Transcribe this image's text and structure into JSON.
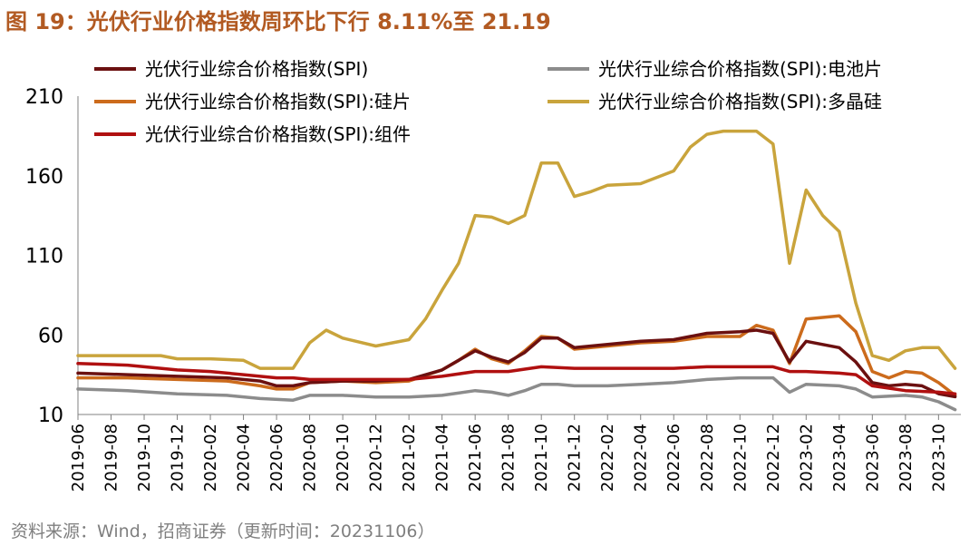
{
  "title": "图 19：光伏行业价格指数周环比下行 8.11%至 21.19",
  "source": "资料来源：Wind，招商证券（更新时间：20231106）",
  "chart_data": {
    "type": "line",
    "title": "图 19：光伏行业价格指数周环比下行 8.11%至 21.19",
    "xlabel": "",
    "ylabel": "",
    "ylim": [
      10,
      210
    ],
    "yticks": [
      10,
      60,
      110,
      160,
      210
    ],
    "xticks": [
      "2019-06",
      "2019-08",
      "2019-10",
      "2019-12",
      "2020-02",
      "2020-04",
      "2020-06",
      "2020-08",
      "2020-10",
      "2020-12",
      "2021-02",
      "2021-04",
      "2021-06",
      "2021-08",
      "2021-10",
      "2021-12",
      "2022-02",
      "2022-04",
      "2022-06",
      "2022-08",
      "2022-10",
      "2022-12",
      "2023-02",
      "2023-04",
      "2023-06",
      "2023-08",
      "2023-10"
    ],
    "grid": false,
    "legend": "top",
    "series": [
      {
        "name": "光伏行业综合价格指数(SPI)",
        "color": "#6b1010",
        "points": [
          [
            "2019-06",
            36
          ],
          [
            "2019-09",
            35
          ],
          [
            "2019-12",
            34
          ],
          [
            "2020-03",
            33
          ],
          [
            "2020-05",
            31
          ],
          [
            "2020-06",
            28
          ],
          [
            "2020-07",
            28
          ],
          [
            "2020-08",
            30
          ],
          [
            "2020-10",
            31
          ],
          [
            "2020-12",
            31
          ],
          [
            "2021-02",
            32
          ],
          [
            "2021-04",
            38
          ],
          [
            "2021-05",
            44
          ],
          [
            "2021-06",
            50
          ],
          [
            "2021-07",
            46
          ],
          [
            "2021-08",
            43
          ],
          [
            "2021-09",
            49
          ],
          [
            "2021-10",
            58
          ],
          [
            "2021-11",
            58
          ],
          [
            "2021-12",
            52
          ],
          [
            "2022-02",
            54
          ],
          [
            "2022-04",
            56
          ],
          [
            "2022-06",
            57
          ],
          [
            "2022-08",
            61
          ],
          [
            "2022-10",
            62
          ],
          [
            "2022-11",
            63
          ],
          [
            "2022-12",
            61
          ],
          [
            "2023-01",
            43
          ],
          [
            "2023-02",
            56
          ],
          [
            "2023-04",
            52
          ],
          [
            "2023-05",
            43
          ],
          [
            "2023-06",
            30
          ],
          [
            "2023-07",
            28
          ],
          [
            "2023-08",
            29
          ],
          [
            "2023-09",
            28
          ],
          [
            "2023-10",
            23.06
          ],
          [
            "2023-11",
            21.19
          ]
        ]
      },
      {
        "name": "光伏行业综合价格指数(SPI):电池片",
        "color": "#8c8c8c",
        "points": [
          [
            "2019-06",
            26
          ],
          [
            "2019-09",
            25
          ],
          [
            "2019-12",
            23
          ],
          [
            "2020-03",
            22
          ],
          [
            "2020-05",
            20
          ],
          [
            "2020-07",
            19
          ],
          [
            "2020-08",
            22
          ],
          [
            "2020-10",
            22
          ],
          [
            "2020-12",
            21
          ],
          [
            "2021-02",
            21
          ],
          [
            "2021-04",
            22
          ],
          [
            "2021-06",
            25
          ],
          [
            "2021-07",
            24
          ],
          [
            "2021-08",
            22
          ],
          [
            "2021-09",
            25
          ],
          [
            "2021-10",
            29
          ],
          [
            "2021-11",
            29
          ],
          [
            "2021-12",
            28
          ],
          [
            "2022-02",
            28
          ],
          [
            "2022-04",
            29
          ],
          [
            "2022-06",
            30
          ],
          [
            "2022-08",
            32
          ],
          [
            "2022-10",
            33
          ],
          [
            "2022-12",
            33
          ],
          [
            "2023-01",
            24
          ],
          [
            "2023-02",
            29
          ],
          [
            "2023-04",
            28
          ],
          [
            "2023-05",
            26
          ],
          [
            "2023-06",
            21
          ],
          [
            "2023-08",
            22
          ],
          [
            "2023-09",
            21
          ],
          [
            "2023-10",
            18
          ],
          [
            "2023-11",
            13
          ]
        ]
      },
      {
        "name": "光伏行业综合价格指数(SPI):硅片",
        "color": "#cc6b1c",
        "points": [
          [
            "2019-06",
            33
          ],
          [
            "2019-09",
            33
          ],
          [
            "2019-12",
            32
          ],
          [
            "2020-03",
            31
          ],
          [
            "2020-05",
            28
          ],
          [
            "2020-06",
            26
          ],
          [
            "2020-07",
            26
          ],
          [
            "2020-08",
            30
          ],
          [
            "2020-10",
            31
          ],
          [
            "2020-12",
            30
          ],
          [
            "2021-02",
            31
          ],
          [
            "2021-04",
            38
          ],
          [
            "2021-05",
            44
          ],
          [
            "2021-06",
            51
          ],
          [
            "2021-07",
            45
          ],
          [
            "2021-08",
            42
          ],
          [
            "2021-09",
            50
          ],
          [
            "2021-10",
            59
          ],
          [
            "2021-11",
            58
          ],
          [
            "2021-12",
            51
          ],
          [
            "2022-02",
            53
          ],
          [
            "2022-04",
            55
          ],
          [
            "2022-06",
            56
          ],
          [
            "2022-08",
            59
          ],
          [
            "2022-10",
            59
          ],
          [
            "2022-11",
            66
          ],
          [
            "2022-12",
            63
          ],
          [
            "2023-01",
            42
          ],
          [
            "2023-02",
            70
          ],
          [
            "2023-04",
            72
          ],
          [
            "2023-05",
            62
          ],
          [
            "2023-06",
            37
          ],
          [
            "2023-07",
            33
          ],
          [
            "2023-08",
            37
          ],
          [
            "2023-09",
            36
          ],
          [
            "2023-10",
            30
          ],
          [
            "2023-11",
            22
          ]
        ]
      },
      {
        "name": "光伏行业综合价格指数(SPI):多晶硅",
        "color": "#c9a43c",
        "points": [
          [
            "2019-06",
            47
          ],
          [
            "2019-09",
            47
          ],
          [
            "2019-11",
            47
          ],
          [
            "2019-12",
            45
          ],
          [
            "2020-02",
            45
          ],
          [
            "2020-04",
            44
          ],
          [
            "2020-05",
            39
          ],
          [
            "2020-07",
            39
          ],
          [
            "2020-08",
            55
          ],
          [
            "2020-09",
            63
          ],
          [
            "2020-10",
            58
          ],
          [
            "2020-12",
            53
          ],
          [
            "2021-02",
            57
          ],
          [
            "2021-03",
            70
          ],
          [
            "2021-04",
            88
          ],
          [
            "2021-05",
            105
          ],
          [
            "2021-06",
            135
          ],
          [
            "2021-07",
            134
          ],
          [
            "2021-08",
            130
          ],
          [
            "2021-09",
            135
          ],
          [
            "2021-10",
            168
          ],
          [
            "2021-11",
            168
          ],
          [
            "2021-12",
            147
          ],
          [
            "2022-01",
            150
          ],
          [
            "2022-02",
            154
          ],
          [
            "2022-04",
            155
          ],
          [
            "2022-06",
            163
          ],
          [
            "2022-07",
            178
          ],
          [
            "2022-08",
            186
          ],
          [
            "2022-09",
            188
          ],
          [
            "2022-10",
            188
          ],
          [
            "2022-11",
            188
          ],
          [
            "2022-12",
            180
          ],
          [
            "2023-01",
            105
          ],
          [
            "2023-02",
            151
          ],
          [
            "2023-03",
            135
          ],
          [
            "2023-04",
            125
          ],
          [
            "2023-05",
            80
          ],
          [
            "2023-06",
            47
          ],
          [
            "2023-07",
            44
          ],
          [
            "2023-08",
            50
          ],
          [
            "2023-09",
            52
          ],
          [
            "2023-10",
            52
          ],
          [
            "2023-11",
            39
          ]
        ]
      },
      {
        "name": "光伏行业综合价格指数(SPI):组件",
        "color": "#b01010",
        "points": [
          [
            "2019-06",
            42
          ],
          [
            "2019-09",
            41
          ],
          [
            "2019-12",
            38
          ],
          [
            "2020-02",
            37
          ],
          [
            "2020-04",
            35
          ],
          [
            "2020-06",
            33
          ],
          [
            "2020-07",
            33
          ],
          [
            "2020-08",
            32
          ],
          [
            "2020-10",
            32
          ],
          [
            "2020-12",
            32
          ],
          [
            "2021-02",
            32
          ],
          [
            "2021-04",
            34
          ],
          [
            "2021-06",
            37
          ],
          [
            "2021-08",
            37
          ],
          [
            "2021-10",
            40
          ],
          [
            "2021-12",
            39
          ],
          [
            "2022-02",
            39
          ],
          [
            "2022-04",
            39
          ],
          [
            "2022-06",
            39
          ],
          [
            "2022-08",
            40
          ],
          [
            "2022-10",
            40
          ],
          [
            "2022-12",
            40
          ],
          [
            "2023-01",
            37
          ],
          [
            "2023-02",
            37
          ],
          [
            "2023-04",
            36
          ],
          [
            "2023-05",
            35
          ],
          [
            "2023-06",
            28
          ],
          [
            "2023-08",
            25
          ],
          [
            "2023-10",
            24
          ],
          [
            "2023-11",
            23
          ]
        ]
      }
    ]
  }
}
